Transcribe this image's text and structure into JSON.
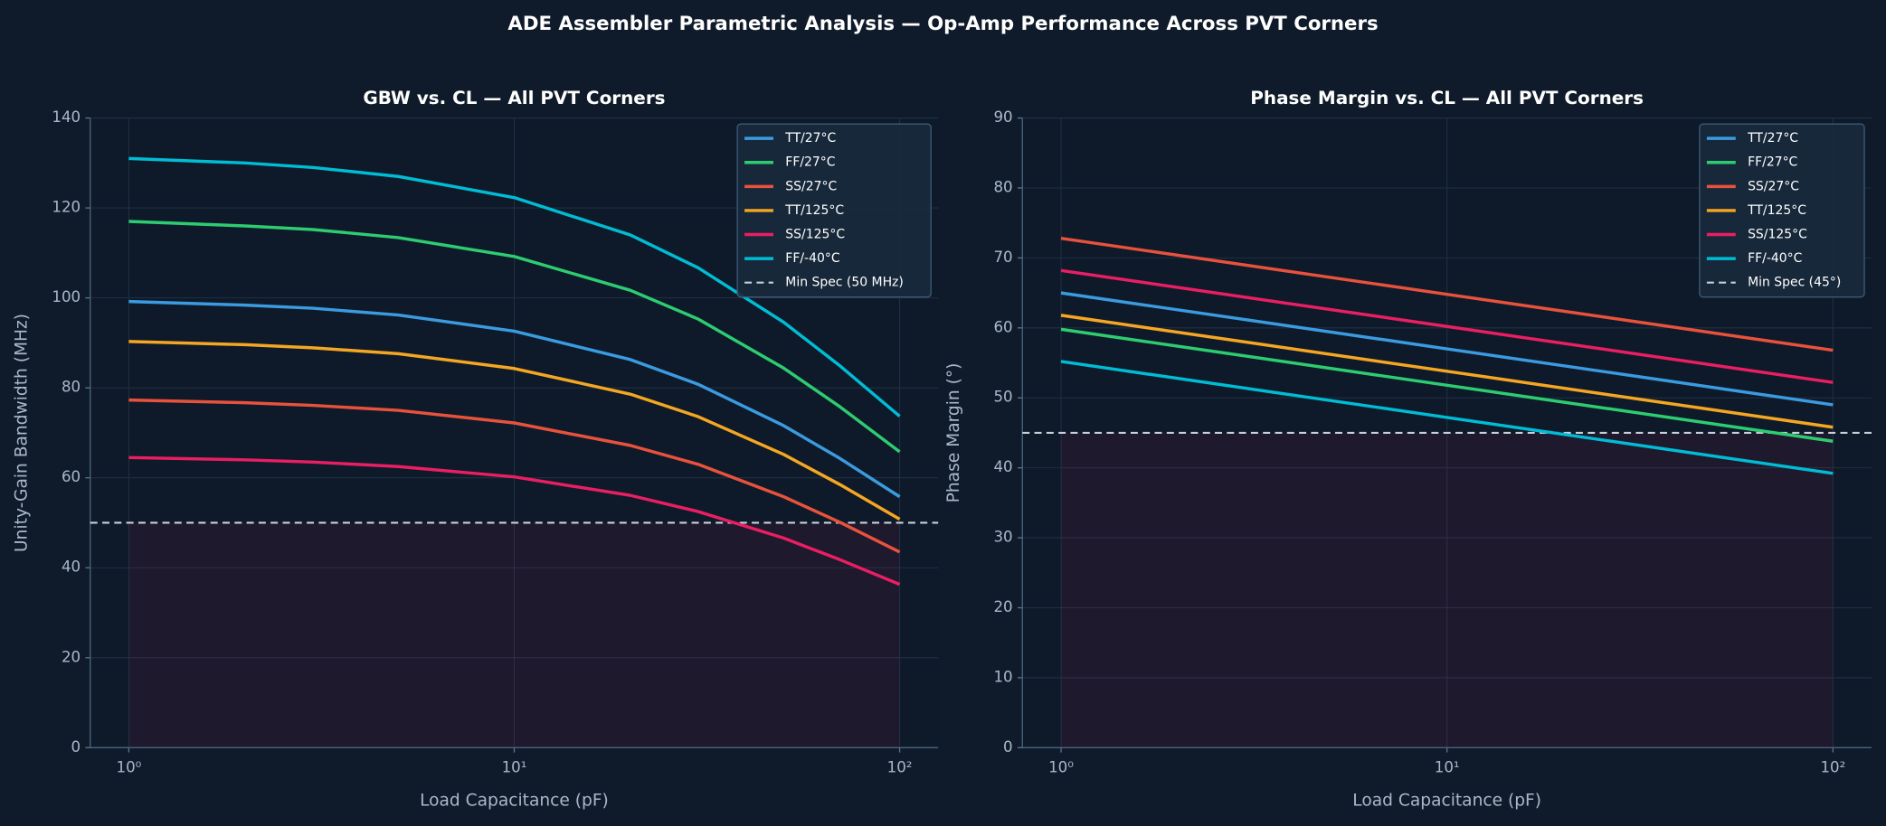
{
  "title": "ADE Assembler Parametric Analysis — Op-Amp Performance Across PVT Corners",
  "chart_data": [
    {
      "type": "line",
      "title": "GBW vs. CL — All PVT Corners",
      "x_label": "Load Capacitance (pF)",
      "y_label": "Unity-Gain Bandwidth (MHz)",
      "log_x": true,
      "grid": true,
      "legend": "upper right",
      "xlim": [
        0.794,
        125.9
      ],
      "ylim": [
        0,
        140
      ],
      "xticks": [
        {
          "value": 1,
          "label": "10⁰"
        },
        {
          "value": 10,
          "label": "10¹"
        },
        {
          "value": 100,
          "label": "10²"
        }
      ],
      "yticks": [
        0,
        20,
        40,
        60,
        80,
        100,
        120,
        140
      ],
      "x": [
        1,
        2,
        3,
        5,
        10,
        20,
        30,
        50,
        70,
        100
      ],
      "series": [
        {
          "name": "TT/27°C",
          "color": "#3b9be0",
          "values": [
            99.2,
            98.4,
            97.7,
            96.2,
            92.6,
            86.3,
            80.8,
            71.6,
            64.3,
            55.8
          ]
        },
        {
          "name": "FF/27°C",
          "color": "#2ecc71",
          "values": [
            117.0,
            116.0,
            115.2,
            113.4,
            109.2,
            101.7,
            95.3,
            84.4,
            75.8,
            65.8
          ]
        },
        {
          "name": "SS/27°C",
          "color": "#e8523c",
          "values": [
            77.3,
            76.7,
            76.1,
            75.0,
            72.2,
            67.2,
            63.0,
            55.8,
            50.1,
            43.5
          ]
        },
        {
          "name": "TT/125°C",
          "color": "#f5a623",
          "values": [
            90.3,
            89.6,
            88.9,
            87.6,
            84.3,
            78.6,
            73.6,
            65.2,
            58.5,
            50.8
          ]
        },
        {
          "name": "SS/125°C",
          "color": "#e91e63",
          "values": [
            64.5,
            64.0,
            63.5,
            62.5,
            60.2,
            56.1,
            52.5,
            46.6,
            41.8,
            36.3
          ]
        },
        {
          "name": "FF/-40°C",
          "color": "#00bcd4",
          "values": [
            131.0,
            130.0,
            129.0,
            127.0,
            122.3,
            114.0,
            106.7,
            94.6,
            84.9,
            73.7
          ]
        }
      ],
      "spec": {
        "value": 50,
        "label": "Min Spec (50 MHz)",
        "color": "#c8d0d8"
      }
    },
    {
      "type": "line",
      "title": "Phase Margin vs. CL — All PVT Corners",
      "x_label": "Load Capacitance (pF)",
      "y_label": "Phase Margin (°)",
      "log_x": true,
      "grid": true,
      "legend": "upper right",
      "xlim": [
        0.794,
        125.9
      ],
      "ylim": [
        0,
        90
      ],
      "xticks": [
        {
          "value": 1,
          "label": "10⁰"
        },
        {
          "value": 10,
          "label": "10¹"
        },
        {
          "value": 100,
          "label": "10²"
        }
      ],
      "yticks": [
        0,
        10,
        20,
        30,
        40,
        50,
        60,
        70,
        80,
        90
      ],
      "x": [
        1,
        10,
        100
      ],
      "series": [
        {
          "name": "TT/27°C",
          "color": "#3b9be0",
          "values": [
            65.0,
            57.0,
            49.0
          ]
        },
        {
          "name": "FF/27°C",
          "color": "#2ecc71",
          "values": [
            59.8,
            51.8,
            43.8
          ]
        },
        {
          "name": "SS/27°C",
          "color": "#e8523c",
          "values": [
            72.8,
            64.8,
            56.8
          ]
        },
        {
          "name": "TT/125°C",
          "color": "#f5a623",
          "values": [
            61.8,
            53.8,
            45.8
          ]
        },
        {
          "name": "SS/125°C",
          "color": "#e91e63",
          "values": [
            68.2,
            60.2,
            52.2
          ]
        },
        {
          "name": "FF/-40°C",
          "color": "#00bcd4",
          "values": [
            55.2,
            47.2,
            39.2
          ]
        }
      ],
      "spec": {
        "value": 45,
        "label": "Min Spec (45°)",
        "color": "#c8d0d8"
      }
    }
  ]
}
